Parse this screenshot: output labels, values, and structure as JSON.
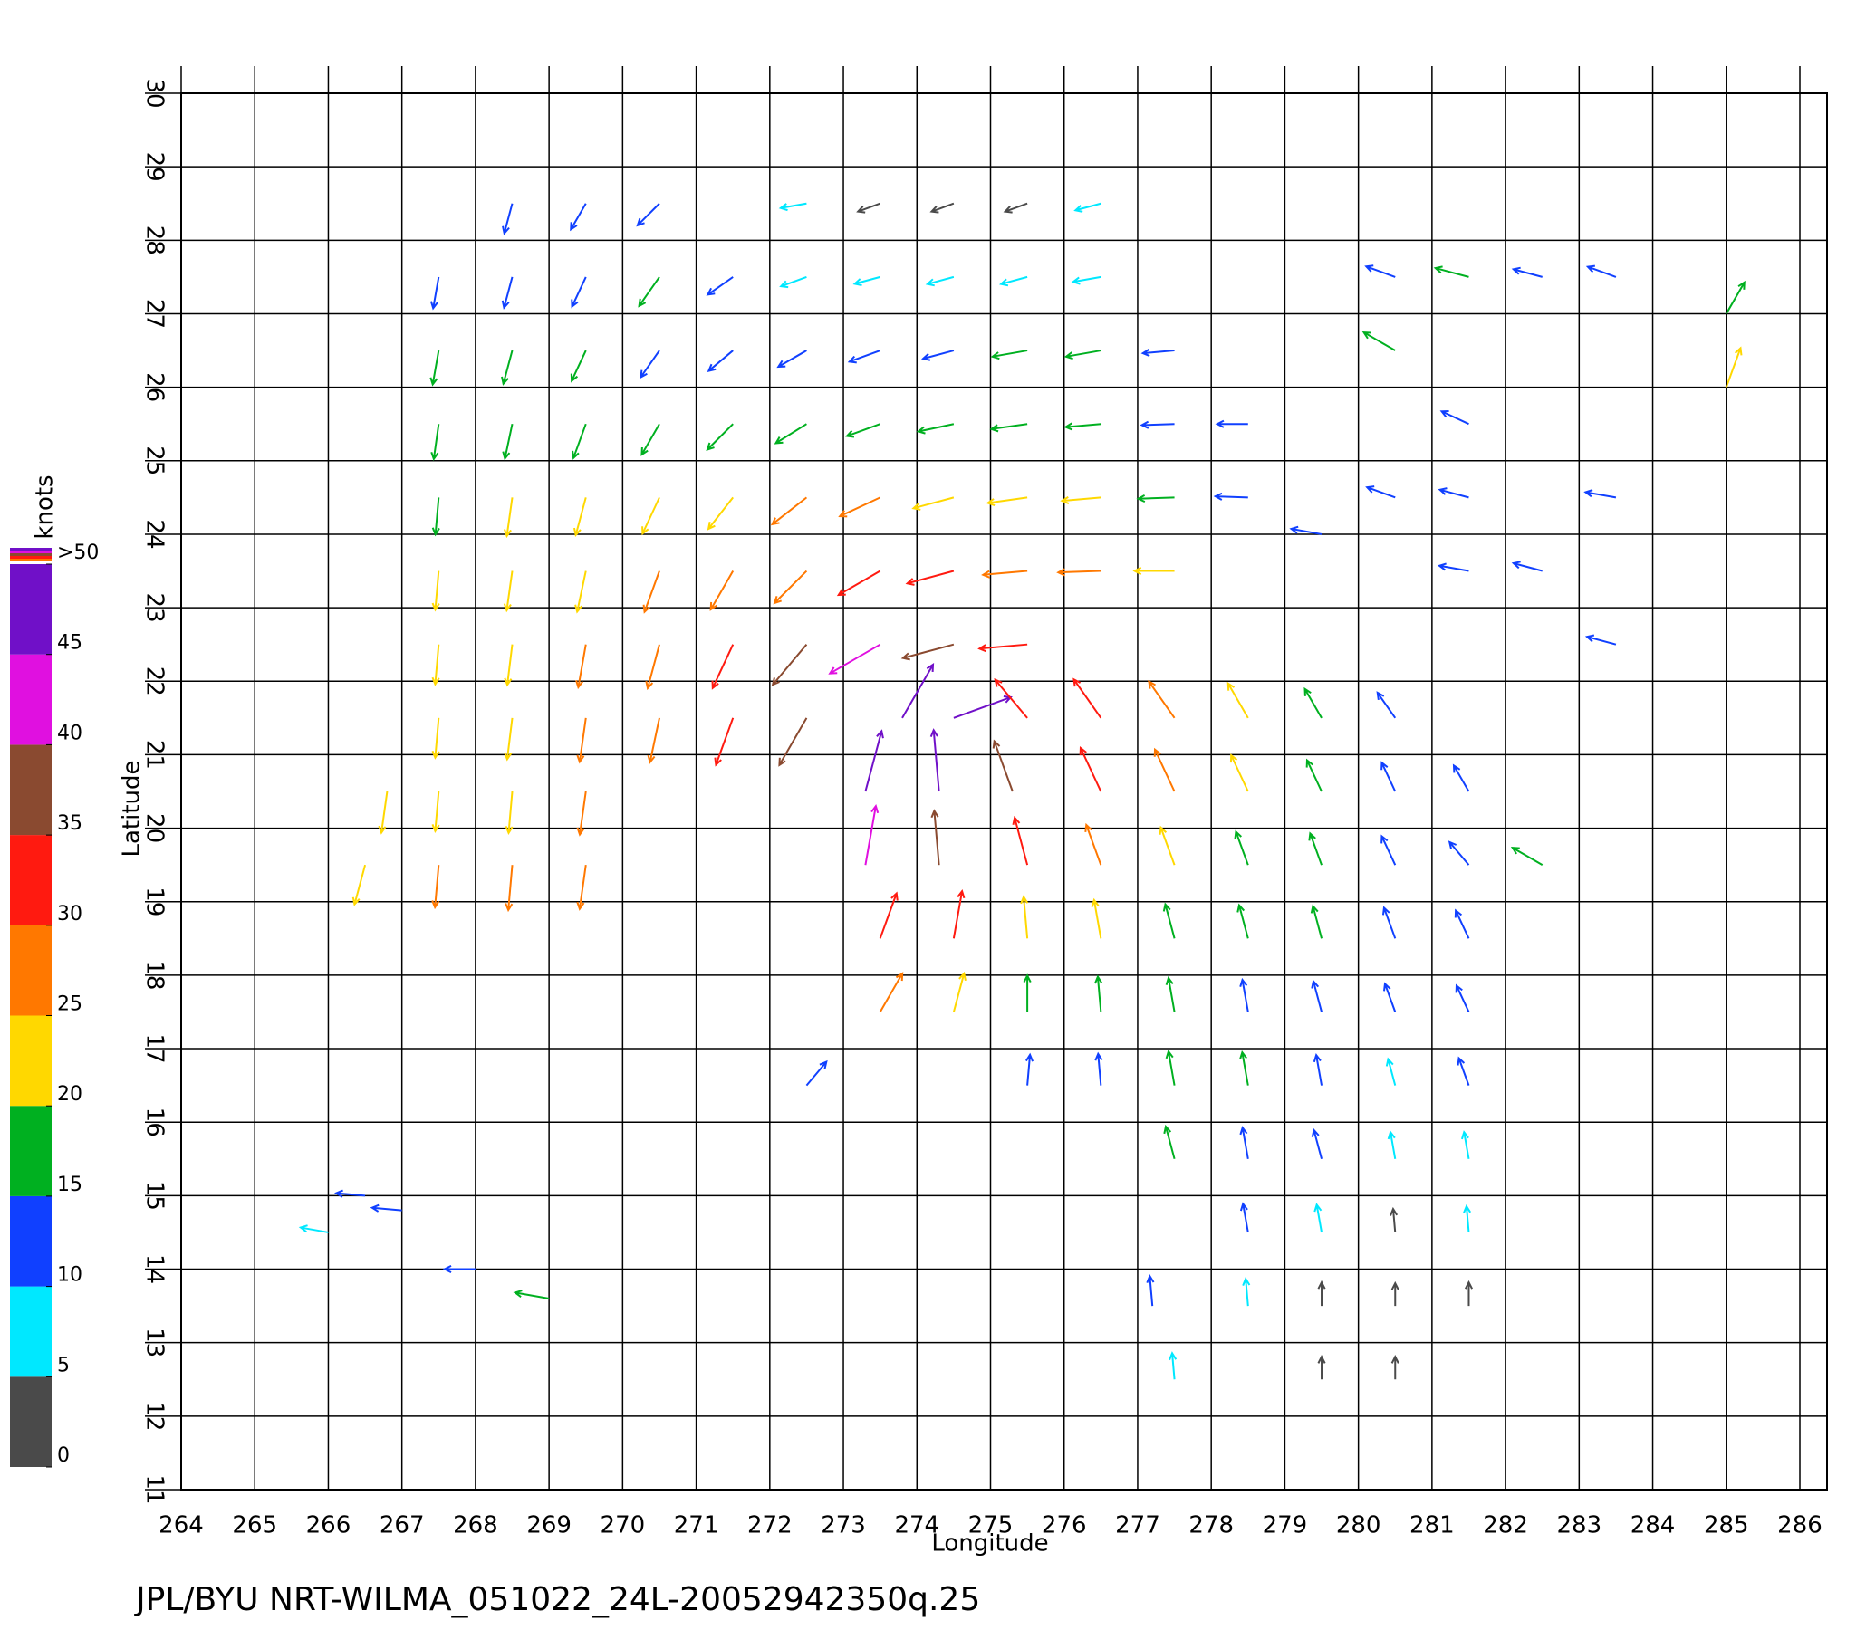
{
  "chart_data": {
    "type": "quiver",
    "title": "JPL/BYU  NRT-WILMA_051022_24L-20052942350q.25",
    "x_label": "Longitude",
    "y_label": "Latitude",
    "xlim": [
      264,
      286
    ],
    "ylim": [
      11,
      30
    ],
    "xticks": [
      264,
      265,
      266,
      267,
      268,
      269,
      270,
      271,
      272,
      273,
      274,
      275,
      276,
      277,
      278,
      279,
      280,
      281,
      282,
      283,
      284,
      285,
      286
    ],
    "yticks": [
      11,
      12,
      13,
      14,
      15,
      16,
      17,
      18,
      19,
      20,
      21,
      22,
      23,
      24,
      25,
      26,
      27,
      28,
      29,
      30
    ],
    "grid": true,
    "colorbar": {
      "label": "knots",
      "ticks": [
        0,
        5,
        10,
        15,
        20,
        25,
        30,
        35,
        40,
        45,
        {
          "value": 50,
          "label": ">50"
        }
      ],
      "colors": [
        "#4a4a4a",
        "#00e8ff",
        "#1040ff",
        "#00b020",
        "#ffd800",
        "#ff7800",
        "#ff1a10",
        "#8a4a30",
        "#e010e0",
        "#7010c8"
      ]
    },
    "vectors": {
      "x": [
        268.5,
        269.5,
        270.5,
        272.5,
        273.5,
        274.5,
        275.5,
        276.5,
        267.5,
        268.5,
        269.5,
        270.5,
        271.5,
        272.5,
        273.5,
        274.5,
        275.5,
        276.5,
        267.5,
        268.5,
        269.5,
        270.5,
        271.5,
        272.5,
        273.5,
        274.5,
        275.5,
        276.5,
        277.5,
        267.5,
        268.5,
        269.5,
        270.5,
        271.5,
        272.5,
        273.5,
        274.5,
        275.5,
        276.5,
        277.5,
        278.5,
        267.5,
        268.5,
        269.5,
        270.5,
        271.5,
        272.5,
        273.5,
        274.5,
        275.5,
        276.5,
        277.5,
        278.5,
        267.5,
        268.5,
        269.5,
        270.5,
        271.5,
        272.5,
        273.5,
        274.5,
        275.5,
        276.5,
        277.5,
        267.5,
        268.5,
        269.5,
        270.5,
        271.5,
        272.5,
        273.5,
        274.5,
        275.5,
        267.5,
        268.5,
        269.5,
        270.5,
        271.5,
        272.5,
        266.8,
        267.5,
        268.5,
        269.5,
        266.5,
        267.5,
        268.5,
        269.5,
        273.8,
        274.5,
        275.5,
        276.5,
        277.5,
        278.5,
        279.5,
        280.5,
        273.3,
        274.3,
        275.3,
        276.5,
        277.5,
        278.5,
        279.5,
        280.5,
        281.5,
        273.3,
        274.3,
        275.5,
        276.5,
        277.5,
        278.5,
        279.5,
        280.5,
        281.5,
        282.5,
        273.5,
        274.5,
        275.5,
        276.5,
        277.5,
        278.5,
        279.5,
        280.5,
        281.5,
        273.5,
        274.5,
        275.5,
        276.5,
        277.5,
        278.5,
        279.5,
        280.5,
        281.5,
        272.5,
        275.5,
        276.5,
        277.5,
        278.5,
        279.5,
        280.5,
        281.5,
        277.5,
        278.5,
        279.5,
        280.5,
        281.5,
        278.5,
        279.5,
        280.5,
        281.5,
        277.2,
        278.5,
        279.5,
        280.5,
        281.5,
        277.5,
        279.5,
        280.5,
        280.5,
        281.5,
        282.5,
        283.5,
        285,
        285,
        280.5,
        281.5,
        280.5,
        281.5,
        281.5,
        282.5,
        283.5,
        283.5,
        279.5,
        266,
        267,
        268,
        269,
        266.5
      ],
      "y": [
        28.5,
        28.5,
        28.5,
        28.5,
        28.5,
        28.5,
        28.5,
        28.5,
        27.5,
        27.5,
        27.5,
        27.5,
        27.5,
        27.5,
        27.5,
        27.5,
        27.5,
        27.5,
        26.5,
        26.5,
        26.5,
        26.5,
        26.5,
        26.5,
        26.5,
        26.5,
        26.5,
        26.5,
        26.5,
        25.5,
        25.5,
        25.5,
        25.5,
        25.5,
        25.5,
        25.5,
        25.5,
        25.5,
        25.5,
        25.5,
        25.5,
        24.5,
        24.5,
        24.5,
        24.5,
        24.5,
        24.5,
        24.5,
        24.5,
        24.5,
        24.5,
        24.5,
        24.5,
        23.5,
        23.5,
        23.5,
        23.5,
        23.5,
        23.5,
        23.5,
        23.5,
        23.5,
        23.5,
        23.5,
        22.5,
        22.5,
        22.5,
        22.5,
        22.5,
        22.5,
        22.5,
        22.5,
        22.5,
        21.5,
        21.5,
        21.5,
        21.5,
        21.5,
        21.5,
        20.5,
        20.5,
        20.5,
        20.5,
        19.5,
        19.5,
        19.5,
        19.5,
        21.5,
        21.5,
        21.5,
        21.5,
        21.5,
        21.5,
        21.5,
        21.5,
        20.5,
        20.5,
        20.5,
        20.5,
        20.5,
        20.5,
        20.5,
        20.5,
        20.5,
        19.5,
        19.5,
        19.5,
        19.5,
        19.5,
        19.5,
        19.5,
        19.5,
        19.5,
        19.5,
        18.5,
        18.5,
        18.5,
        18.5,
        18.5,
        18.5,
        18.5,
        18.5,
        18.5,
        17.5,
        17.5,
        17.5,
        17.5,
        17.5,
        17.5,
        17.5,
        17.5,
        17.5,
        16.5,
        16.5,
        16.5,
        16.5,
        16.5,
        16.5,
        16.5,
        16.5,
        15.5,
        15.5,
        15.5,
        15.5,
        15.5,
        14.5,
        14.5,
        14.5,
        14.5,
        13.5,
        13.5,
        13.5,
        13.5,
        13.5,
        12.5,
        12.5,
        12.5,
        27.5,
        27.5,
        27.5,
        27.5,
        27,
        26,
        26.5,
        25.5,
        24.5,
        24.5,
        23.5,
        23.5,
        24.5,
        22.5,
        24,
        14.5,
        14.8,
        14,
        13.6,
        15
      ],
      "speed": [
        12,
        11,
        12,
        7,
        4,
        4,
        4,
        7,
        13,
        13,
        14,
        17,
        12,
        8,
        7,
        8,
        8,
        9,
        16,
        16,
        15,
        14,
        13,
        14,
        14,
        13,
        17,
        17,
        13,
        17,
        17,
        18,
        17,
        18,
        18,
        17,
        18,
        18,
        17,
        14,
        12,
        19,
        21,
        21,
        22,
        22,
        26,
        27,
        24,
        22,
        21,
        18,
        14,
        21,
        22,
        24,
        26,
        27,
        28,
        31,
        31,
        27,
        25,
        22,
        22,
        23,
        26,
        28,
        31,
        36,
        42,
        36,
        31,
        22,
        24,
        27,
        28,
        33,
        38,
        24,
        22,
        24,
        26,
        23,
        25,
        28,
        27,
        46,
        45,
        33,
        30,
        27,
        22,
        15,
        12,
        47,
        46,
        37,
        31,
        29,
        22,
        16,
        13,
        11,
        44,
        38,
        32,
        25,
        22,
        17,
        15,
        13,
        11,
        16,
        31,
        31,
        24,
        21,
        17,
        16,
        15,
        14,
        12,
        27,
        22,
        18,
        17,
        16,
        14,
        13,
        11,
        10,
        12,
        12,
        13,
        16,
        15,
        12,
        8,
        10,
        15,
        13,
        11,
        8,
        8,
        10,
        9,
        4,
        7,
        11,
        8,
        4,
        3,
        4,
        7,
        3,
        3,
        12,
        16,
        11,
        11,
        18,
        24,
        18,
        11,
        11,
        11,
        11,
        11,
        12,
        11,
        12,
        9,
        11,
        12,
        16,
        10
      ],
      "direction": [
        255,
        240,
        225,
        190,
        200,
        200,
        200,
        195,
        260,
        255,
        245,
        235,
        215,
        200,
        195,
        195,
        195,
        190,
        260,
        255,
        245,
        235,
        220,
        210,
        200,
        195,
        190,
        190,
        185,
        262,
        258,
        250,
        240,
        225,
        212,
        200,
        192,
        188,
        185,
        182,
        180,
        265,
        262,
        255,
        245,
        232,
        218,
        205,
        195,
        188,
        185,
        182,
        178,
        265,
        262,
        258,
        250,
        240,
        225,
        210,
        195,
        185,
        182,
        180,
        265,
        263,
        260,
        255,
        245,
        230,
        210,
        195,
        185,
        265,
        263,
        262,
        258,
        250,
        240,
        262,
        265,
        265,
        262,
        255,
        265,
        265,
        262,
        60,
        20,
        130,
        125,
        125,
        120,
        120,
        125,
        75,
        95,
        110,
        115,
        115,
        115,
        115,
        115,
        120,
        80,
        95,
        105,
        110,
        110,
        110,
        110,
        115,
        130,
        150,
        70,
        80,
        95,
        100,
        105,
        105,
        105,
        110,
        115,
        60,
        75,
        90,
        95,
        100,
        100,
        105,
        110,
        115,
        50,
        85,
        95,
        100,
        100,
        100,
        105,
        110,
        105,
        100,
        105,
        100,
        100,
        100,
        100,
        95,
        95,
        95,
        95,
        90,
        90,
        90,
        95,
        90,
        90,
        160,
        165,
        165,
        160,
        60,
        70,
        150,
        155,
        160,
        165,
        170,
        165,
        170,
        165,
        170,
        170,
        175,
        180,
        170,
        175
      ]
    }
  }
}
